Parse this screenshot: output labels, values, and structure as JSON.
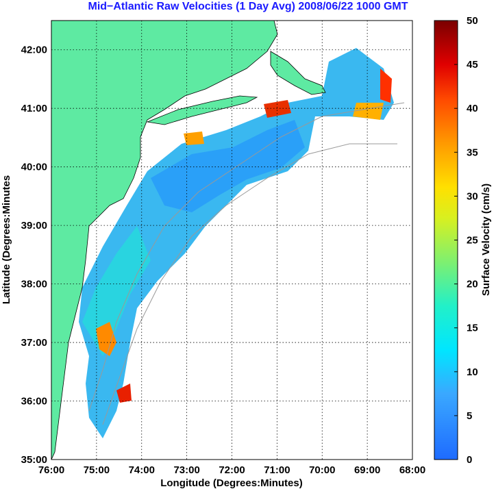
{
  "title": "Mid−Atlantic Raw Velocities (1 Day Avg) 2008/06/22 1000 GMT",
  "map": {
    "xlabel": "Longitude (Degrees:Minutes)",
    "ylabel": "Latitude (Degrees:Minutes",
    "lon_range": [
      -76,
      -68
    ],
    "lat_range": [
      35,
      42.5
    ],
    "x_ticks": [
      "76:00",
      "75:00",
      "74:00",
      "73:00",
      "72:00",
      "71:00",
      "70:00",
      "69:00",
      "68:00"
    ],
    "y_ticks": [
      "35:00",
      "36:00",
      "37:00",
      "38:00",
      "39:00",
      "40:00",
      "41:00",
      "42:00"
    ],
    "grid": true,
    "land_color": "#5eeaa2"
  },
  "colorbar": {
    "label": "Surface Velocity (cm/s)",
    "range": [
      0,
      50
    ],
    "ticks": [
      "0",
      "5",
      "10",
      "15",
      "20",
      "25",
      "30",
      "35",
      "40",
      "45",
      "50"
    ]
  }
}
